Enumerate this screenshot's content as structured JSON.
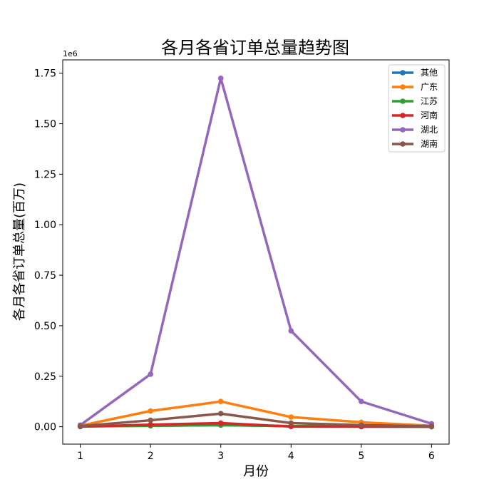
{
  "chart_data": {
    "type": "line",
    "title": "各月各省订单总量趋势图",
    "xlabel": "月份",
    "ylabel": "各月各省订单总量(百万)",
    "y_offset_text": "1e6",
    "x": [
      1,
      2,
      3,
      4,
      5,
      6
    ],
    "x_tick_labels": [
      "1",
      "2",
      "3",
      "4",
      "5",
      "6"
    ],
    "y_ticks": [
      0,
      250000,
      500000,
      750000,
      1000000,
      1250000,
      1500000,
      1750000
    ],
    "y_tick_labels": [
      "0.00",
      "0.25",
      "0.50",
      "0.75",
      "1.00",
      "1.25",
      "1.50",
      "1.75"
    ],
    "xlim": [
      0.75,
      6.25
    ],
    "ylim": [
      -86000,
      1816000
    ],
    "grid": false,
    "legend_position": "top-right",
    "series": [
      {
        "name": "其他",
        "color": "#1f77b4",
        "values": [
          2000,
          5000,
          8000,
          3000,
          1000,
          500
        ]
      },
      {
        "name": "广东",
        "color": "#ff7f0e",
        "values": [
          5000,
          78000,
          125000,
          48000,
          22000,
          5000
        ]
      },
      {
        "name": "江苏",
        "color": "#2ca02c",
        "values": [
          1000,
          5000,
          8000,
          3000,
          2000,
          500
        ]
      },
      {
        "name": "河南",
        "color": "#d62728",
        "values": [
          1000,
          10000,
          18000,
          1000,
          500,
          500
        ]
      },
      {
        "name": "湖北",
        "color": "#9467bd",
        "values": [
          8000,
          260000,
          1725000,
          475000,
          125000,
          15000
        ]
      },
      {
        "name": "湖南",
        "color": "#8c564b",
        "values": [
          3000,
          32000,
          65000,
          18000,
          8000,
          2000
        ]
      }
    ]
  }
}
